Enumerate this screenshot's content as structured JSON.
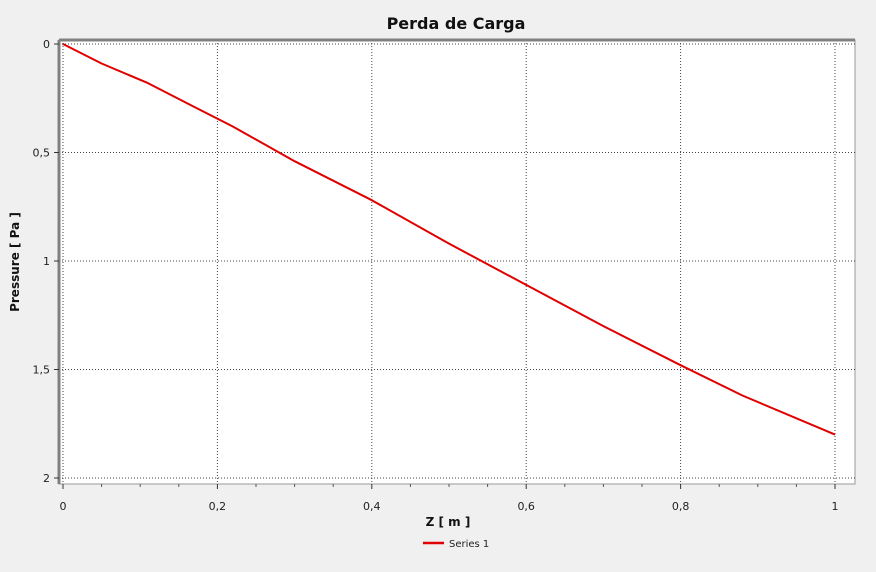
{
  "chart_data": {
    "type": "line",
    "title": "Perda de Carga",
    "xlabel": "Z [ m ]",
    "ylabel": "Pressure [ Pa ]",
    "xlim": [
      0,
      1
    ],
    "ylim": [
      0,
      2
    ],
    "y_axis_inverted": true,
    "x_ticks": [
      {
        "value": 0,
        "label": "0"
      },
      {
        "value": 0.2,
        "label": "0,2"
      },
      {
        "value": 0.4,
        "label": "0,4"
      },
      {
        "value": 0.6,
        "label": "0,6"
      },
      {
        "value": 0.8,
        "label": "0,8"
      },
      {
        "value": 1,
        "label": "1"
      }
    ],
    "y_ticks": [
      {
        "value": 0,
        "label": "0"
      },
      {
        "value": 0.5,
        "label": "0,5"
      },
      {
        "value": 1,
        "label": "1"
      },
      {
        "value": 1.5,
        "label": "1,5"
      },
      {
        "value": 2,
        "label": "2"
      }
    ],
    "grid": true,
    "legend_position": "bottom-center",
    "series": [
      {
        "name": "Series 1",
        "color": "#e00000",
        "x": [
          0,
          0.05,
          0.11,
          0.17,
          0.22,
          0.3,
          0.4,
          0.5,
          0.6,
          0.7,
          0.8,
          0.88,
          1.0
        ],
        "y": [
          0,
          0.09,
          0.18,
          0.29,
          0.38,
          0.54,
          0.72,
          0.92,
          1.11,
          1.3,
          1.48,
          1.62,
          1.8
        ]
      }
    ]
  }
}
